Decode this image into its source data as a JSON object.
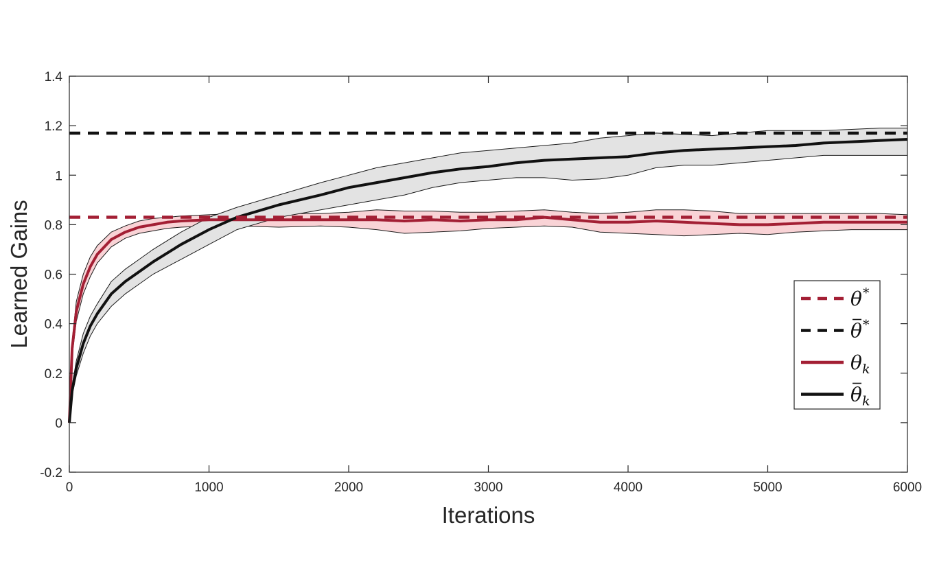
{
  "chart_data": {
    "type": "line",
    "xlabel": "Iterations",
    "ylabel": "Learned Gains",
    "xlim": [
      0,
      6000
    ],
    "ylim": [
      -0.2,
      1.4
    ],
    "xticks": [
      {
        "value": 0,
        "label": "0"
      },
      {
        "value": 1000,
        "label": "1000"
      },
      {
        "value": 2000,
        "label": "2000"
      },
      {
        "value": 3000,
        "label": "3000"
      },
      {
        "value": 4000,
        "label": "4000"
      },
      {
        "value": 5000,
        "label": "5000"
      },
      {
        "value": 6000,
        "label": "6000"
      }
    ],
    "yticks": [
      {
        "value": -0.2,
        "label": "-0.2"
      },
      {
        "value": 0,
        "label": "0"
      },
      {
        "value": 0.2,
        "label": "0.2"
      },
      {
        "value": 0.4,
        "label": "0.4"
      },
      {
        "value": 0.6,
        "label": "0.6"
      },
      {
        "value": 0.8,
        "label": "0.8"
      },
      {
        "value": 1,
        "label": "1"
      },
      {
        "value": 1.2,
        "label": "1.2"
      },
      {
        "value": 1.4,
        "label": "1.4"
      }
    ],
    "grid": false,
    "legend_position": "lower-right",
    "colors": {
      "red": "#a31f34",
      "red_band": "#f9d3d6",
      "black": "#111111",
      "gray_band": "#e3e3e3"
    },
    "series": [
      {
        "name": "θ*",
        "legend_symbol": "θ",
        "legend_sup": "*",
        "legend_sub": "",
        "legend_bar": false,
        "style": "dashed",
        "color": "red",
        "x": [
          0,
          6000
        ],
        "y": [
          0.83,
          0.83
        ]
      },
      {
        "name": "θ̄*",
        "legend_symbol": "θ",
        "legend_sup": "*",
        "legend_sub": "",
        "legend_bar": true,
        "style": "dashed",
        "color": "black",
        "x": [
          0,
          6000
        ],
        "y": [
          1.17,
          1.17
        ]
      },
      {
        "name": "θk",
        "legend_symbol": "θ",
        "legend_sup": "",
        "legend_sub": "k",
        "legend_bar": false,
        "style": "solid",
        "color": "red",
        "band_color": "red_band",
        "x": [
          0,
          20,
          50,
          100,
          150,
          200,
          300,
          400,
          500,
          600,
          700,
          800,
          1000,
          1200,
          1500,
          1800,
          2000,
          2200,
          2400,
          2600,
          2800,
          3000,
          3200,
          3400,
          3600,
          3800,
          4000,
          4200,
          4400,
          4600,
          4800,
          5000,
          5200,
          5400,
          5600,
          5800,
          6000
        ],
        "y": [
          0.0,
          0.3,
          0.45,
          0.56,
          0.63,
          0.68,
          0.74,
          0.77,
          0.79,
          0.8,
          0.81,
          0.815,
          0.82,
          0.82,
          0.82,
          0.82,
          0.82,
          0.82,
          0.815,
          0.82,
          0.815,
          0.82,
          0.82,
          0.83,
          0.82,
          0.81,
          0.81,
          0.815,
          0.81,
          0.805,
          0.8,
          0.8,
          0.805,
          0.81,
          0.81,
          0.81,
          0.81
        ],
        "lower": [
          0.0,
          0.27,
          0.41,
          0.52,
          0.59,
          0.645,
          0.71,
          0.745,
          0.765,
          0.775,
          0.785,
          0.79,
          0.795,
          0.795,
          0.79,
          0.795,
          0.79,
          0.78,
          0.765,
          0.77,
          0.775,
          0.785,
          0.79,
          0.795,
          0.79,
          0.77,
          0.765,
          0.76,
          0.755,
          0.76,
          0.765,
          0.76,
          0.77,
          0.775,
          0.78,
          0.78,
          0.78
        ],
        "upper": [
          0.0,
          0.33,
          0.49,
          0.6,
          0.67,
          0.715,
          0.77,
          0.795,
          0.815,
          0.825,
          0.83,
          0.835,
          0.84,
          0.845,
          0.845,
          0.845,
          0.85,
          0.86,
          0.855,
          0.855,
          0.85,
          0.85,
          0.855,
          0.86,
          0.85,
          0.845,
          0.85,
          0.86,
          0.86,
          0.855,
          0.845,
          0.845,
          0.845,
          0.845,
          0.845,
          0.845,
          0.84
        ]
      },
      {
        "name": "θ̄k",
        "legend_symbol": "θ",
        "legend_sup": "",
        "legend_sub": "k",
        "legend_bar": true,
        "style": "solid",
        "color": "black",
        "band_color": "gray_band",
        "x": [
          0,
          20,
          50,
          100,
          150,
          200,
          300,
          400,
          500,
          600,
          800,
          1000,
          1200,
          1500,
          1800,
          2000,
          2200,
          2400,
          2600,
          2800,
          3000,
          3200,
          3400,
          3600,
          3800,
          4000,
          4200,
          4400,
          4600,
          4800,
          5000,
          5200,
          5400,
          5600,
          5800,
          6000
        ],
        "y": [
          0.0,
          0.13,
          0.22,
          0.32,
          0.39,
          0.44,
          0.52,
          0.57,
          0.61,
          0.65,
          0.72,
          0.78,
          0.83,
          0.88,
          0.92,
          0.95,
          0.97,
          0.99,
          1.01,
          1.025,
          1.035,
          1.05,
          1.06,
          1.065,
          1.07,
          1.075,
          1.09,
          1.1,
          1.105,
          1.11,
          1.115,
          1.12,
          1.13,
          1.135,
          1.14,
          1.145
        ],
        "lower": [
          0.0,
          0.11,
          0.19,
          0.28,
          0.35,
          0.4,
          0.47,
          0.52,
          0.56,
          0.6,
          0.66,
          0.72,
          0.78,
          0.83,
          0.86,
          0.88,
          0.9,
          0.92,
          0.95,
          0.97,
          0.98,
          0.99,
          0.99,
          0.98,
          0.985,
          1.0,
          1.03,
          1.04,
          1.04,
          1.05,
          1.06,
          1.07,
          1.08,
          1.08,
          1.08,
          1.08
        ],
        "upper": [
          0.0,
          0.15,
          0.25,
          0.36,
          0.43,
          0.48,
          0.57,
          0.62,
          0.66,
          0.7,
          0.77,
          0.83,
          0.87,
          0.92,
          0.97,
          1.0,
          1.03,
          1.05,
          1.07,
          1.09,
          1.1,
          1.11,
          1.12,
          1.13,
          1.15,
          1.16,
          1.17,
          1.165,
          1.16,
          1.17,
          1.18,
          1.18,
          1.18,
          1.185,
          1.19,
          1.19
        ]
      }
    ]
  }
}
